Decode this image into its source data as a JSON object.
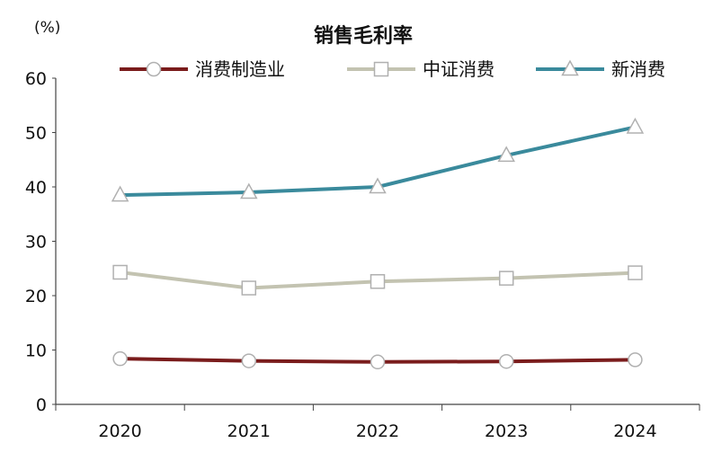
{
  "chart_data": {
    "type": "line",
    "title": "销售毛利率",
    "unit_label": "(%)",
    "categories": [
      "2020",
      "2021",
      "2022",
      "2023",
      "2024"
    ],
    "ylim": [
      0,
      60
    ],
    "yticks": [
      "0",
      "10",
      "20",
      "30",
      "40",
      "50",
      "60"
    ],
    "grid": false,
    "legend_position": "top",
    "series": [
      {
        "name": "消费制造业",
        "values": [
          8.4,
          8.0,
          7.8,
          7.9,
          8.2
        ],
        "color": "#7a1c1c",
        "marker": "circle"
      },
      {
        "name": "中证消费",
        "values": [
          24.3,
          21.4,
          22.6,
          23.2,
          24.2
        ],
        "color": "#c3c3b1",
        "marker": "square"
      },
      {
        "name": "新消费",
        "values": [
          38.5,
          39.0,
          40.0,
          45.8,
          51.0
        ],
        "color": "#3a8a9c",
        "marker": "triangle"
      }
    ]
  }
}
